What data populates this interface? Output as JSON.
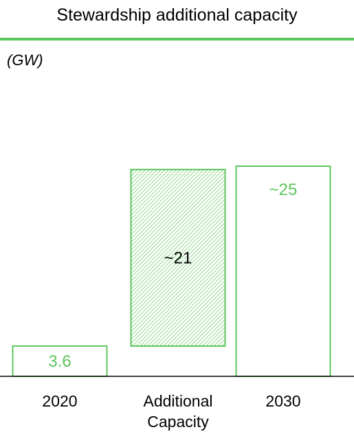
{
  "title": "Stewardship additional capacity",
  "unit": "(GW)",
  "colors": {
    "accent": "#5cc65c",
    "axis": "#000000",
    "text": "#000000"
  },
  "chart_data": {
    "type": "bar",
    "subtype": "waterfall",
    "categories": [
      "2020",
      "Additional Capacity",
      "2030"
    ],
    "category_lines": [
      [
        "2020"
      ],
      [
        "Additional",
        "Capacity"
      ],
      [
        "2030"
      ]
    ],
    "values": [
      3.6,
      21,
      25
    ],
    "bar_kind": [
      "total",
      "increment",
      "total"
    ],
    "labels": [
      "3.6",
      "~21",
      "~25"
    ],
    "ylim": [
      0,
      25
    ],
    "grid": false,
    "legend": "none"
  }
}
